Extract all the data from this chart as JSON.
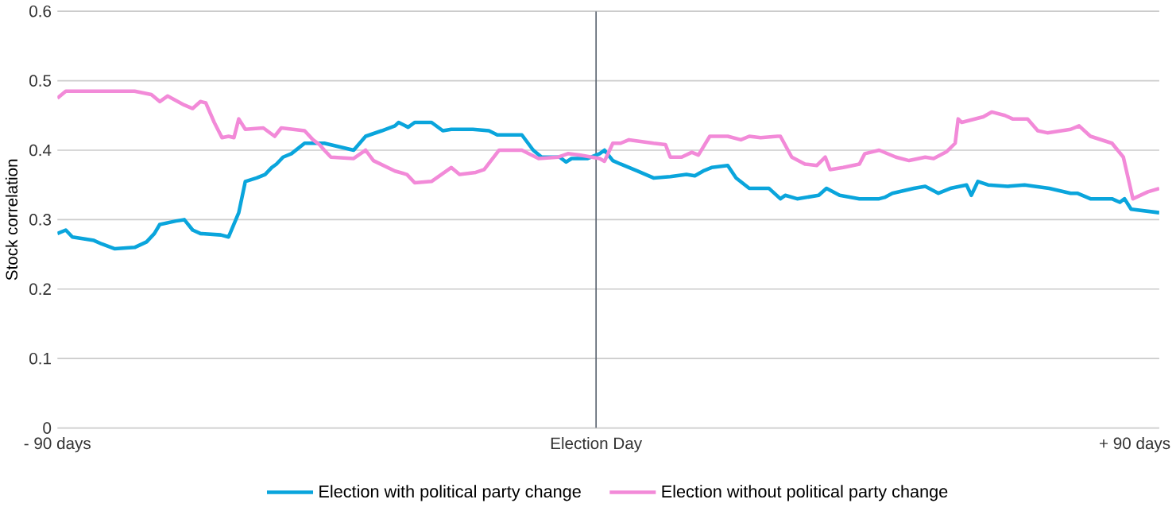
{
  "chart_data": {
    "type": "line",
    "ylabel": "Stock correlation",
    "xlim": [
      -90,
      94.1
    ],
    "xticks": [
      {
        "value": -90,
        "label": "- 90 days"
      },
      {
        "value": 0,
        "label": "Election Day"
      },
      {
        "value": 90,
        "label": "+ 90 days"
      }
    ],
    "ylim": [
      0,
      0.6
    ],
    "yticks": [
      0,
      0.1,
      0.2,
      0.3,
      0.4,
      0.5,
      0.6
    ],
    "grid": "y",
    "legend": "bottom",
    "marker": "none",
    "line_style": "solid",
    "ref_lines": [
      {
        "axis": "x",
        "value": 0,
        "color": "#5a6470"
      }
    ],
    "series": [
      {
        "name": "Election with political party change",
        "color": "#0aa5dc",
        "x": [
          -90,
          -88.6,
          -87.5,
          -83.9,
          -82.6,
          -80.4,
          -77.1,
          -75.1,
          -73.8,
          -72.9,
          -70.2,
          -68.8,
          -67.4,
          -66.1,
          -62.7,
          -61.4,
          -59.7,
          -58.6,
          -56.7,
          -55.3,
          -54.2,
          -53.4,
          -52.3,
          -50.9,
          -48.7,
          -46.2,
          -45.4,
          -40.5,
          -38.5,
          -35.8,
          -33.6,
          -33.0,
          -31.4,
          -30.3,
          -27.5,
          -25.6,
          -24.2,
          -20.6,
          -17.9,
          -16.5,
          -12.4,
          -10.5,
          -9.1,
          -6.1,
          -5.0,
          -4.1,
          -1.4,
          0.6,
          1.4,
          2.8,
          4.1,
          6.9,
          9.6,
          12.4,
          15.1,
          16.5,
          17.9,
          19.3,
          22.0,
          23.4,
          25.6,
          28.9,
          30.8,
          31.6,
          33.6,
          37.2,
          38.5,
          40.7,
          44.0,
          47.3,
          48.2,
          49.5,
          53.1,
          55.0,
          57.2,
          59.2,
          61.9,
          62.7,
          63.8,
          65.5,
          68.8,
          71.6,
          75.7,
          79.3,
          80.4,
          82.6,
          86.2,
          87.5,
          88.3,
          89.4,
          94.1
        ],
        "values": [
          0.28,
          0.285,
          0.275,
          0.27,
          0.265,
          0.258,
          0.26,
          0.268,
          0.28,
          0.293,
          0.298,
          0.3,
          0.285,
          0.28,
          0.278,
          0.275,
          0.31,
          0.355,
          0.36,
          0.365,
          0.375,
          0.38,
          0.39,
          0.395,
          0.41,
          0.41,
          0.41,
          0.4,
          0.42,
          0.428,
          0.435,
          0.44,
          0.433,
          0.44,
          0.44,
          0.428,
          0.43,
          0.43,
          0.428,
          0.422,
          0.422,
          0.4,
          0.39,
          0.39,
          0.383,
          0.388,
          0.388,
          0.395,
          0.4,
          0.385,
          0.38,
          0.37,
          0.36,
          0.362,
          0.365,
          0.363,
          0.37,
          0.375,
          0.378,
          0.36,
          0.345,
          0.345,
          0.33,
          0.335,
          0.33,
          0.335,
          0.345,
          0.335,
          0.33,
          0.33,
          0.332,
          0.338,
          0.345,
          0.348,
          0.338,
          0.345,
          0.35,
          0.335,
          0.355,
          0.35,
          0.348,
          0.35,
          0.345,
          0.338,
          0.338,
          0.33,
          0.33,
          0.325,
          0.33,
          0.315,
          0.31
        ]
      },
      {
        "name": "Election without political party change",
        "color": "#f28ad8",
        "x": [
          -90,
          -88.6,
          -77.1,
          -74.3,
          -72.9,
          -71.6,
          -68.8,
          -67.4,
          -66.1,
          -65.2,
          -63.8,
          -62.5,
          -61.4,
          -60.5,
          -59.7,
          -58.6,
          -55.6,
          -53.7,
          -52.6,
          -48.7,
          -47.3,
          -46.2,
          -45.4,
          -44.3,
          -40.5,
          -38.5,
          -37.2,
          -33.6,
          -31.6,
          -30.3,
          -27.5,
          -24.2,
          -22.8,
          -20.1,
          -18.7,
          -16.2,
          -12.4,
          -9.6,
          -6.3,
          -4.7,
          -2.8,
          0.6,
          1.4,
          2.8,
          4.1,
          5.5,
          9.6,
          11.6,
          12.4,
          14.3,
          16.0,
          17.1,
          19.0,
          22.0,
          24.2,
          25.6,
          27.5,
          30.3,
          30.8,
          32.7,
          34.9,
          36.9,
          38.3,
          39.1,
          41.3,
          44.0,
          44.9,
          47.3,
          50.1,
          52.3,
          55.0,
          56.4,
          58.6,
          60.0,
          60.5,
          61.1,
          64.7,
          66.1,
          68.3,
          69.6,
          72.1,
          73.8,
          75.4,
          79.3,
          80.7,
          82.6,
          86.2,
          88.1,
          89.7,
          92.2,
          94.1
        ],
        "values": [
          0.475,
          0.485,
          0.485,
          0.48,
          0.47,
          0.478,
          0.465,
          0.46,
          0.47,
          0.468,
          0.44,
          0.418,
          0.42,
          0.418,
          0.445,
          0.43,
          0.432,
          0.42,
          0.432,
          0.428,
          0.415,
          0.408,
          0.4,
          0.39,
          0.388,
          0.4,
          0.385,
          0.37,
          0.365,
          0.353,
          0.355,
          0.375,
          0.365,
          0.368,
          0.372,
          0.4,
          0.4,
          0.388,
          0.39,
          0.395,
          0.393,
          0.388,
          0.384,
          0.41,
          0.41,
          0.415,
          0.41,
          0.408,
          0.39,
          0.39,
          0.397,
          0.393,
          0.42,
          0.42,
          0.415,
          0.42,
          0.418,
          0.42,
          0.42,
          0.39,
          0.38,
          0.378,
          0.39,
          0.372,
          0.375,
          0.38,
          0.395,
          0.4,
          0.39,
          0.385,
          0.39,
          0.388,
          0.398,
          0.41,
          0.445,
          0.44,
          0.448,
          0.455,
          0.45,
          0.445,
          0.445,
          0.428,
          0.425,
          0.43,
          0.435,
          0.42,
          0.41,
          0.39,
          0.33,
          0.34,
          0.345
        ]
      }
    ]
  }
}
